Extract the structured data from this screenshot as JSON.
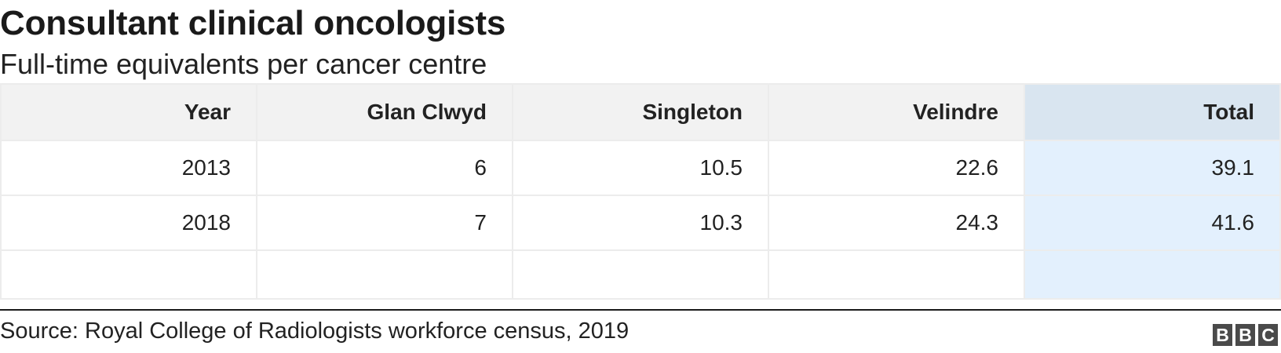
{
  "chart_data": {
    "type": "table",
    "title": "Consultant clinical oncologists",
    "subtitle": "Full-time equivalents per cancer centre",
    "columns": [
      "Year",
      "Glan Clwyd",
      "Singleton",
      "Velindre",
      "Total"
    ],
    "highlight_column": "Total",
    "rows": [
      [
        "2013",
        "6",
        "10.5",
        "22.6",
        "39.1"
      ],
      [
        "2018",
        "7",
        "10.3",
        "24.3",
        "41.6"
      ]
    ],
    "source": "Source: Royal College of Radiologists workforce census, 2019"
  },
  "branding": {
    "logo_letters": [
      "B",
      "B",
      "C"
    ]
  },
  "colors": {
    "header_bg": "#f2f2f2",
    "highlight_header_bg": "#d9e5f0",
    "highlight_cell_bg": "#e3f0fd",
    "logo_bg": "#4a4a4a"
  }
}
